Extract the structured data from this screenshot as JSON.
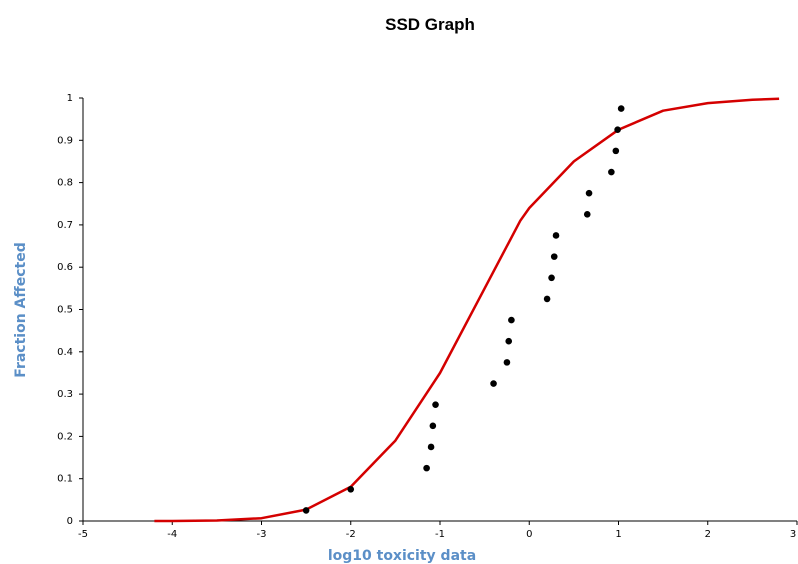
{
  "chart_data": {
    "type": "scatter",
    "title": "SSD Graph",
    "xlabel": "log10 toxicity data",
    "ylabel": "Fraction Affected",
    "xlim": [
      -5,
      3
    ],
    "ylim": [
      0,
      1
    ],
    "x_ticks": [
      -5,
      -4,
      -3,
      -2,
      -1,
      0,
      1,
      2,
      3
    ],
    "y_ticks": [
      0,
      0.1,
      0.2,
      0.3,
      0.4,
      0.5,
      0.6,
      0.7,
      0.8,
      0.9,
      1
    ],
    "x_tick_labels": [
      "-5",
      "-4",
      "-3",
      "-2",
      "-1",
      "0",
      "1",
      "2",
      "3"
    ],
    "y_tick_labels": [
      "0",
      "0.1",
      "0.2",
      "0.3",
      "0.4",
      "0.5",
      "0.6",
      "0.7",
      "0.8",
      "0.9",
      "1"
    ],
    "grid": false,
    "legend": "none",
    "series": [
      {
        "kind": "points",
        "color": "#000000",
        "x": [
          -2.5,
          -2.0,
          -1.15,
          -1.1,
          -1.08,
          -1.05,
          -0.4,
          -0.25,
          -0.23,
          -0.2,
          0.2,
          0.25,
          0.28,
          0.3,
          0.65,
          0.67,
          0.92,
          0.97,
          0.99,
          1.03
        ],
        "y": [
          0.025,
          0.075,
          0.125,
          0.175,
          0.225,
          0.275,
          0.325,
          0.375,
          0.425,
          0.475,
          0.525,
          0.575,
          0.625,
          0.675,
          0.725,
          0.775,
          0.825,
          0.875,
          0.925,
          0.975
        ]
      },
      {
        "kind": "fitted_curve",
        "color": "#d40000",
        "x": [
          -4.2,
          -4.0,
          -3.5,
          -3.0,
          -2.5,
          -2.0,
          -1.5,
          -1.0,
          -0.5,
          -0.1,
          0.0,
          0.5,
          1.0,
          1.5,
          2.0,
          2.5,
          2.8
        ],
        "y": [
          0.0,
          0.0001,
          0.0012,
          0.0066,
          0.027,
          0.081,
          0.19,
          0.35,
          0.55,
          0.71,
          0.74,
          0.85,
          0.925,
          0.97,
          0.988,
          0.996,
          0.998
        ]
      }
    ]
  }
}
